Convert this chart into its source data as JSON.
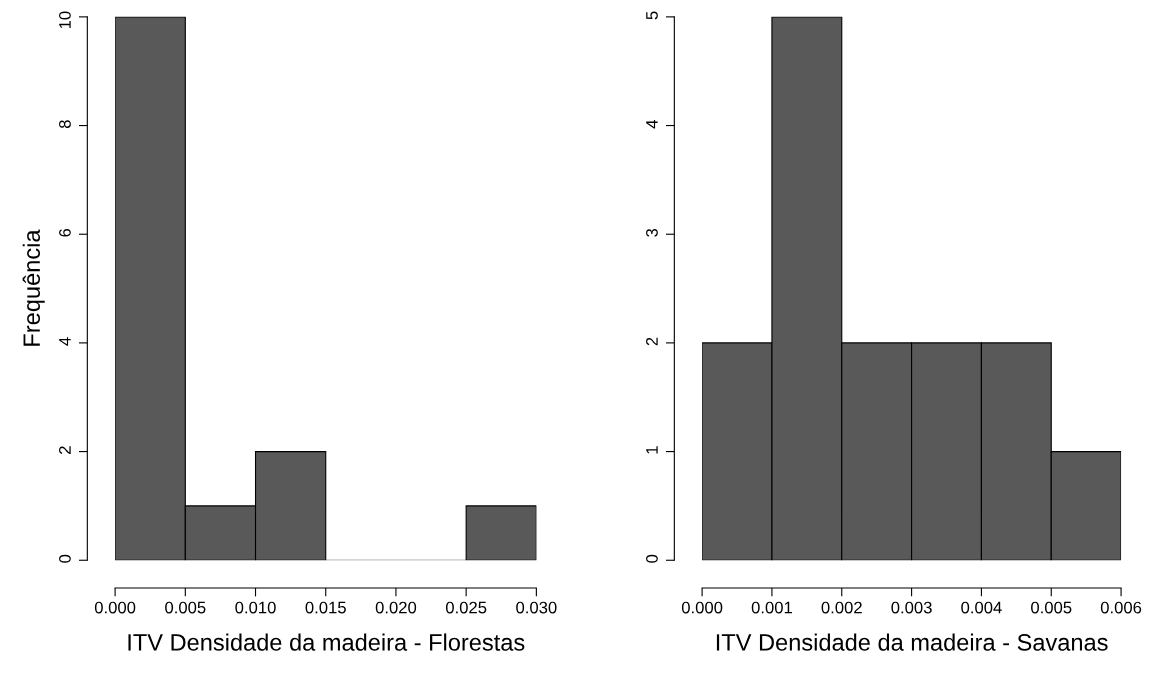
{
  "chart_data": [
    {
      "type": "histogram",
      "xlabel": "ITV Densidade da madeira - Florestas",
      "ylabel": "Frequência",
      "color": "#595959",
      "bins": [
        0,
        0.005,
        0.01,
        0.015,
        0.02,
        0.025,
        0.03
      ],
      "values": [
        10,
        1,
        2,
        0,
        0,
        1
      ],
      "xlim": [
        0,
        0.03
      ],
      "ylim": [
        0,
        10
      ],
      "xticks": [
        {
          "value": 0,
          "label": "0.000"
        },
        {
          "value": 0.005,
          "label": "0.005"
        },
        {
          "value": 0.01,
          "label": "0.010"
        },
        {
          "value": 0.015,
          "label": "0.015"
        },
        {
          "value": 0.02,
          "label": "0.020"
        },
        {
          "value": 0.025,
          "label": "0.025"
        },
        {
          "value": 0.03,
          "label": "0.030"
        }
      ],
      "yticks": [
        0,
        2,
        4,
        6,
        8,
        10
      ],
      "grid": false,
      "legend": false
    },
    {
      "type": "histogram",
      "xlabel": "ITV Densidade da madeira - Savanas",
      "color": "#595959",
      "bins": [
        0,
        0.001,
        0.002,
        0.003,
        0.004,
        0.005,
        0.006
      ],
      "values": [
        2,
        5,
        2,
        2,
        2,
        1
      ],
      "xlim": [
        0,
        0.006
      ],
      "ylim": [
        0,
        5
      ],
      "xticks": [
        {
          "value": 0,
          "label": "0.000"
        },
        {
          "value": 0.001,
          "label": "0.001"
        },
        {
          "value": 0.002,
          "label": "0.002"
        },
        {
          "value": 0.003,
          "label": "0.003"
        },
        {
          "value": 0.004,
          "label": "0.004"
        },
        {
          "value": 0.005,
          "label": "0.005"
        },
        {
          "value": 0.006,
          "label": "0.006"
        }
      ],
      "yticks": [
        0,
        1,
        2,
        3,
        4,
        5
      ],
      "grid": false,
      "legend": false
    }
  ]
}
